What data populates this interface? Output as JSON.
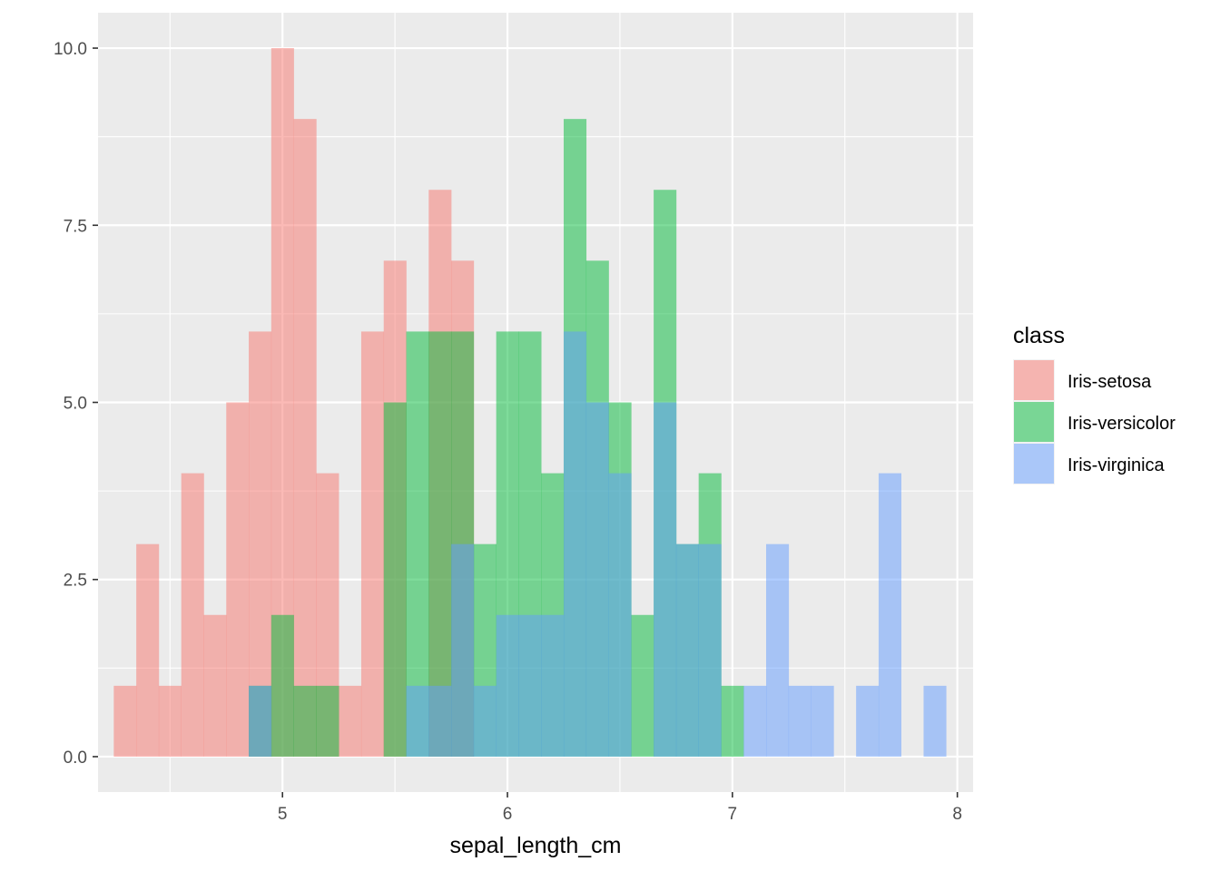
{
  "chart_data": {
    "type": "bar",
    "subtype": "histogram",
    "position": "identity",
    "bin_width": 0.1,
    "xlabel": "sepal_length_cm",
    "ylabel": "",
    "xlim": [
      4.18,
      8.07
    ],
    "ylim": [
      -0.5,
      10.5
    ],
    "x_ticks": [
      5,
      6,
      7,
      8
    ],
    "x_tick_labels": [
      "5",
      "6",
      "7",
      "8"
    ],
    "y_ticks": [
      0,
      2.5,
      5,
      7.5,
      10
    ],
    "y_tick_labels": [
      "0.0",
      "2.5",
      "5.0",
      "7.5",
      "10.0"
    ],
    "grid": true,
    "legend": {
      "title": "class",
      "position": "right"
    },
    "series": [
      {
        "name": "Iris-setosa",
        "color": "#F8766D",
        "bins": [
          {
            "x": 4.3,
            "count": 1
          },
          {
            "x": 4.4,
            "count": 3
          },
          {
            "x": 4.5,
            "count": 1
          },
          {
            "x": 4.6,
            "count": 4
          },
          {
            "x": 4.7,
            "count": 2
          },
          {
            "x": 4.8,
            "count": 5
          },
          {
            "x": 4.9,
            "count": 6
          },
          {
            "x": 5.0,
            "count": 10
          },
          {
            "x": 5.1,
            "count": 9
          },
          {
            "x": 5.2,
            "count": 4
          },
          {
            "x": 5.3,
            "count": 1
          },
          {
            "x": 5.4,
            "count": 6
          },
          {
            "x": 5.5,
            "count": 7
          },
          {
            "x": 5.7,
            "count": 8
          },
          {
            "x": 5.8,
            "count": 7
          }
        ]
      },
      {
        "name": "Iris-versicolor",
        "color": "#00BA38",
        "bins": [
          {
            "x": 4.9,
            "count": 1
          },
          {
            "x": 5.0,
            "count": 2
          },
          {
            "x": 5.1,
            "count": 1
          },
          {
            "x": 5.2,
            "count": 1
          },
          {
            "x": 5.5,
            "count": 5
          },
          {
            "x": 5.6,
            "count": 6
          },
          {
            "x": 5.7,
            "count": 6
          },
          {
            "x": 5.8,
            "count": 6
          },
          {
            "x": 5.9,
            "count": 3
          },
          {
            "x": 6.0,
            "count": 6
          },
          {
            "x": 6.1,
            "count": 6
          },
          {
            "x": 6.2,
            "count": 4
          },
          {
            "x": 6.3,
            "count": 9
          },
          {
            "x": 6.4,
            "count": 7
          },
          {
            "x": 6.5,
            "count": 5
          },
          {
            "x": 6.6,
            "count": 2
          },
          {
            "x": 6.7,
            "count": 8
          },
          {
            "x": 6.8,
            "count": 3
          },
          {
            "x": 6.9,
            "count": 4
          },
          {
            "x": 7.0,
            "count": 1
          }
        ]
      },
      {
        "name": "Iris-virginica",
        "color": "#619CFF",
        "bins": [
          {
            "x": 4.9,
            "count": 1
          },
          {
            "x": 5.6,
            "count": 1
          },
          {
            "x": 5.7,
            "count": 1
          },
          {
            "x": 5.8,
            "count": 3
          },
          {
            "x": 5.9,
            "count": 1
          },
          {
            "x": 6.0,
            "count": 2
          },
          {
            "x": 6.1,
            "count": 2
          },
          {
            "x": 6.2,
            "count": 2
          },
          {
            "x": 6.3,
            "count": 6
          },
          {
            "x": 6.4,
            "count": 5
          },
          {
            "x": 6.5,
            "count": 4
          },
          {
            "x": 6.7,
            "count": 5
          },
          {
            "x": 6.8,
            "count": 3
          },
          {
            "x": 6.9,
            "count": 3
          },
          {
            "x": 7.1,
            "count": 1
          },
          {
            "x": 7.2,
            "count": 3
          },
          {
            "x": 7.3,
            "count": 1
          },
          {
            "x": 7.4,
            "count": 1
          },
          {
            "x": 7.6,
            "count": 1
          },
          {
            "x": 7.7,
            "count": 4
          },
          {
            "x": 7.9,
            "count": 1
          }
        ]
      }
    ],
    "panel_background": "#EBEBEB",
    "grid_color": "#FFFFFF",
    "bar_opacity": 0.5
  }
}
